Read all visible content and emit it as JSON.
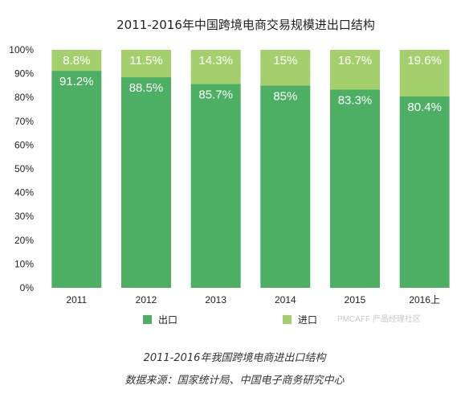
{
  "chart_data": {
    "type": "bar",
    "stacked": true,
    "title": "2011-2016年中国跨境电商交易规模进出口结构",
    "categories": [
      "2011",
      "2012",
      "2013",
      "2014",
      "2015",
      "2016上"
    ],
    "series": [
      {
        "name": "出口",
        "color": "#4caf63",
        "values": [
          91.2,
          88.5,
          85.7,
          85,
          83.3,
          80.4
        ],
        "labels": [
          "91.2%",
          "88.5%",
          "85.7%",
          "85%",
          "83.3%",
          "80.4%"
        ]
      },
      {
        "name": "进口",
        "color": "#a3cf6d",
        "values": [
          8.8,
          11.5,
          14.3,
          15,
          16.7,
          19.6
        ],
        "labels": [
          "8.8%",
          "11.5%",
          "14.3%",
          "15%",
          "16.7%",
          "19.6%"
        ]
      }
    ],
    "y_ticks": [
      "0%",
      "10%",
      "20%",
      "30%",
      "40%",
      "50%",
      "60%",
      "70%",
      "80%",
      "90%",
      "100%"
    ],
    "ylim": [
      0,
      100
    ],
    "legend_position": "bottom-center",
    "grid": false
  },
  "watermark": "PMCAFF 产品经理社区",
  "captions": {
    "line1": "2011-2016年我国跨境电商进出口结构",
    "line2": "数据来源：国家统计局、中国电子商务研究中心"
  }
}
